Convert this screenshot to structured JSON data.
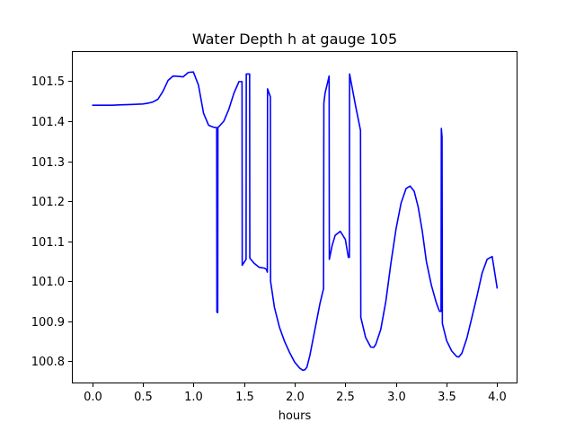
{
  "chart_data": {
    "type": "line",
    "title": "Water Depth h at gauge 105",
    "xlabel": "hours",
    "ylabel": "",
    "xlim": [
      -0.2,
      4.2
    ],
    "ylim": [
      100.745,
      101.575
    ],
    "xticks": [
      0.0,
      0.5,
      1.0,
      1.5,
      2.0,
      2.5,
      3.0,
      3.5,
      4.0
    ],
    "xtick_labels": [
      "0.0",
      "0.5",
      "1.0",
      "1.5",
      "2.0",
      "2.5",
      "3.0",
      "3.5",
      "4.0"
    ],
    "yticks": [
      100.8,
      100.9,
      101.0,
      101.1,
      101.2,
      101.3,
      101.4,
      101.5
    ],
    "ytick_labels": [
      "100.8",
      "100.9",
      "101.0",
      "101.1",
      "101.2",
      "101.3",
      "101.4",
      "101.5"
    ],
    "grid": false,
    "line_color": "#0000ff",
    "series": [
      {
        "x": [
          0.0,
          0.1,
          0.2,
          0.3,
          0.4,
          0.5,
          0.55,
          0.6,
          0.65,
          0.7,
          0.75,
          0.8,
          0.85,
          0.9,
          0.95,
          1.0,
          1.05,
          1.1,
          1.15,
          1.2,
          1.23,
          1.232,
          1.24,
          1.242,
          1.25,
          1.3,
          1.35,
          1.4,
          1.45,
          1.48,
          1.482,
          1.52,
          1.522,
          1.555,
          1.557,
          1.6,
          1.65,
          1.7,
          1.72,
          1.73,
          1.732,
          1.76,
          1.762,
          1.8,
          1.85,
          1.9,
          1.95,
          2.0,
          2.05,
          2.08,
          2.1,
          2.12,
          2.15,
          2.2,
          2.25,
          2.285,
          2.288,
          2.3,
          2.34,
          2.342,
          2.37,
          2.4,
          2.45,
          2.5,
          2.53,
          2.54,
          2.542,
          2.6,
          2.65,
          2.653,
          2.7,
          2.75,
          2.78,
          2.8,
          2.85,
          2.9,
          2.95,
          3.0,
          3.05,
          3.1,
          3.14,
          3.18,
          3.22,
          3.26,
          3.3,
          3.35,
          3.4,
          3.43,
          3.445,
          3.448,
          3.455,
          3.458,
          3.5,
          3.55,
          3.6,
          3.62,
          3.65,
          3.7,
          3.75,
          3.8,
          3.85,
          3.9,
          3.95,
          4.0
        ],
        "y": [
          101.44,
          101.44,
          101.44,
          101.441,
          101.442,
          101.443,
          101.445,
          101.448,
          101.455,
          101.475,
          101.502,
          101.513,
          101.512,
          101.511,
          101.522,
          101.523,
          101.49,
          101.42,
          101.39,
          101.385,
          101.384,
          100.923,
          100.922,
          101.385,
          101.386,
          101.4,
          101.43,
          101.47,
          101.499,
          101.499,
          101.04,
          101.055,
          101.518,
          101.518,
          101.058,
          101.045,
          101.035,
          101.033,
          101.03,
          101.023,
          101.481,
          101.461,
          101.0,
          100.935,
          100.885,
          100.85,
          100.822,
          100.798,
          100.783,
          100.778,
          100.779,
          100.785,
          100.815,
          100.88,
          100.945,
          100.982,
          101.445,
          101.47,
          101.513,
          101.055,
          101.09,
          101.115,
          101.125,
          101.105,
          101.06,
          101.06,
          101.518,
          101.44,
          101.377,
          100.91,
          100.86,
          100.836,
          100.835,
          100.842,
          100.88,
          100.95,
          101.045,
          101.13,
          101.195,
          101.232,
          101.238,
          101.225,
          101.185,
          101.125,
          101.05,
          100.99,
          100.945,
          100.925,
          100.925,
          101.382,
          101.36,
          100.895,
          100.852,
          100.826,
          100.812,
          100.811,
          100.82,
          100.858,
          100.91,
          100.963,
          101.02,
          101.055,
          101.062,
          100.982
        ]
      }
    ]
  }
}
